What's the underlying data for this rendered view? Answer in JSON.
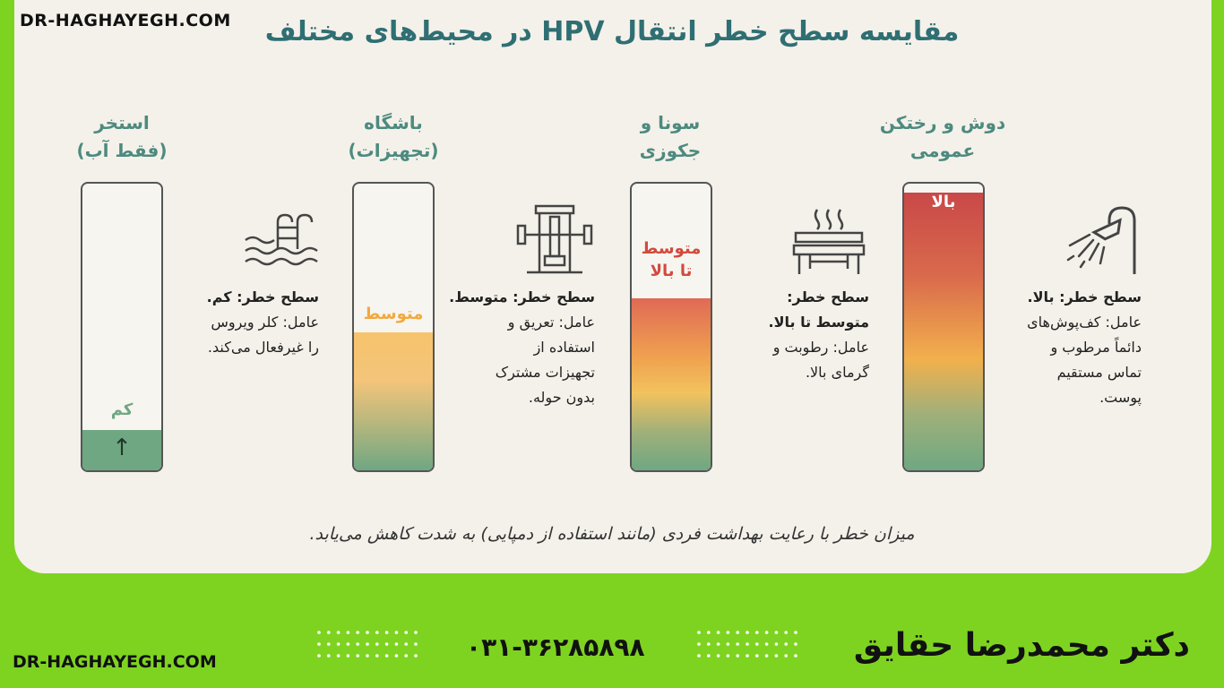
{
  "watermark": "DR-HAGHAYEGH.COM",
  "title": "مقایسه سطح خطر انتقال HPV در محیط‌های مختلف",
  "columns": [
    {
      "id": "shower",
      "title_line1": "دوش و رختکن",
      "title_line2": "عمومی",
      "level_label": "بالا",
      "risk_fraction": 0.97,
      "risk_heading": "سطح خطر: بالا.",
      "factor_lines": [
        "عامل: کف‌پوش‌های",
        "دائماً مرطوب و",
        "تماس مستقیم",
        "پوست."
      ],
      "icon": "shower-icon"
    },
    {
      "id": "sauna",
      "title_line1": "سونا و",
      "title_line2": "جکوزی",
      "level_label_line1": "متوسط",
      "level_label_line2": "تا بالا",
      "risk_fraction": 0.6,
      "risk_heading_line1": "سطح خطر:",
      "risk_heading_line2": "متوسط تا بالا.",
      "factor_lines": [
        "عامل: رطوبت و",
        "گرمای بالا."
      ],
      "icon": "sauna-bench-icon"
    },
    {
      "id": "gym",
      "title_line1": "باشگاه",
      "title_line2": "(تجهیزات)",
      "level_label": "متوسط",
      "risk_fraction": 0.48,
      "risk_heading": "سطح خطر: متوسط.",
      "factor_lines": [
        "عامل: تعریق و",
        "استفاده از",
        "تجهیزات مشترک",
        "بدون حوله."
      ],
      "icon": "gym-machine-icon"
    },
    {
      "id": "pool",
      "title_line1": "استخر",
      "title_line2": "(فقط آب)",
      "level_label": "کم",
      "risk_fraction": 0.14,
      "risk_heading": "سطح خطر: کم.",
      "factor_lines": [
        "عامل: کلر ویروس",
        "را غیرفعال می‌کند."
      ],
      "icon": "pool-ladder-icon"
    }
  ],
  "pool_arrow": "↑",
  "footer_note": "میزان خطر با رعایت بهداشت فردی (مانند استفاده از دمپایی) به شدت کاهش می‌یابد.",
  "footer_url": "DR-HAGHAYEGH.COM",
  "phone": "۰۳۱-۳۶۲۸۵۸۹۸",
  "doctor_name": "دکتر محمدرضا حقایق",
  "colors": {
    "background": "#7ed321",
    "card": "#f4f1ea",
    "title": "#2f6f73",
    "high": "#c94a4a",
    "medium": "#f2b04d",
    "low": "#6fa782"
  }
}
